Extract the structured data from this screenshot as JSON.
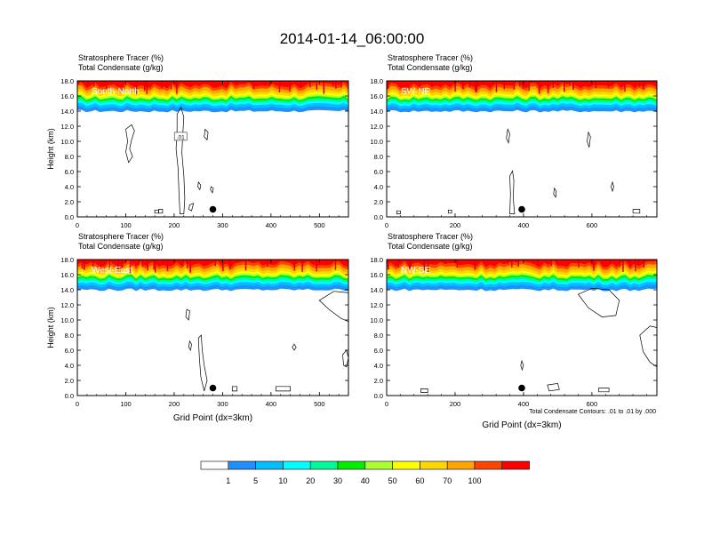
{
  "title": "2014-01-14_06:00:00",
  "colors": [
    "#ffffff",
    "#1e90ff",
    "#00bfff",
    "#00ffff",
    "#00fa9a",
    "#00ee00",
    "#adff2f",
    "#ffff00",
    "#ffd700",
    "#ffa500",
    "#ff4500",
    "#ff0000"
  ],
  "chart_data": [
    {
      "type": "heatmap",
      "cross_section": "South-North",
      "line1": "Stratosphere Tracer   (%)",
      "line2": "Total Condensate   (g/kg)",
      "ylabel": "Height (km)",
      "xlabel": "",
      "xlim": [
        0,
        560
      ],
      "ylim": [
        0,
        18
      ],
      "xticks": [
        "0",
        "100",
        "200",
        "300",
        "400",
        "500"
      ],
      "yticks": [
        "0.0",
        "2.0",
        "4.0",
        "6.0",
        "8.0",
        "10.0",
        "12.0",
        "14.0",
        "16.0",
        "18.0"
      ],
      "tracer_top_km": 18.0,
      "tracer_base_km": 14.0,
      "contour_label": ".01",
      "marker": {
        "x": 280,
        "y": 1.0
      },
      "contours": [
        [
          [
            100,
            11.6
          ],
          [
            112,
            12.2
          ],
          [
            118,
            11.4
          ],
          [
            112,
            10.2
          ],
          [
            108,
            9.0
          ],
          [
            114,
            8.0
          ],
          [
            106,
            7.2
          ],
          [
            100,
            8.6
          ],
          [
            104,
            10.0
          ],
          [
            100,
            11.6
          ]
        ],
        [
          [
            206,
            13.6
          ],
          [
            214,
            14.5
          ],
          [
            220,
            13.2
          ],
          [
            218,
            11.0
          ],
          [
            216,
            8.5
          ],
          [
            220,
            5.5
          ],
          [
            222,
            2.5
          ],
          [
            220,
            0.4
          ],
          [
            212,
            0.4
          ],
          [
            210,
            3.0
          ],
          [
            208,
            6.5
          ],
          [
            204,
            9.0
          ],
          [
            206,
            11.5
          ],
          [
            206,
            13.6
          ]
        ],
        [
          [
            264,
            11.6
          ],
          [
            270,
            11.2
          ],
          [
            268,
            10.2
          ],
          [
            262,
            10.6
          ],
          [
            264,
            11.6
          ]
        ],
        [
          [
            250,
            4.6
          ],
          [
            255,
            4.2
          ],
          [
            253,
            3.6
          ],
          [
            249,
            4.0
          ],
          [
            250,
            4.6
          ]
        ],
        [
          [
            276,
            4.0
          ],
          [
            281,
            3.8
          ],
          [
            279,
            3.2
          ],
          [
            275,
            3.6
          ],
          [
            276,
            4.0
          ]
        ],
        [
          [
            232,
            1.6
          ],
          [
            240,
            1.8
          ],
          [
            236,
            0.8
          ],
          [
            230,
            1.0
          ],
          [
            232,
            1.6
          ]
        ],
        [
          [
            160,
            0.9
          ],
          [
            168,
            0.9
          ],
          [
            168,
            0.5
          ],
          [
            160,
            0.5
          ],
          [
            160,
            0.9
          ]
        ],
        [
          [
            168,
            1.0
          ],
          [
            176,
            1.0
          ],
          [
            176,
            0.5
          ],
          [
            168,
            0.5
          ],
          [
            168,
            1.0
          ]
        ]
      ]
    },
    {
      "type": "heatmap",
      "cross_section": "SW-NE",
      "line1": "Stratosphere Tracer   (%)",
      "line2": "Total Condensate   (g/kg)",
      "ylabel": "",
      "xlabel": "",
      "xlim": [
        0,
        790
      ],
      "ylim": [
        0,
        18
      ],
      "xticks": [
        "0",
        "200",
        "400",
        "600"
      ],
      "yticks": [
        "0.0",
        "2.0",
        "4.0",
        "6.0",
        "8.0",
        "10.0",
        "12.0",
        "14.0",
        "16.0",
        "18.0"
      ],
      "tracer_top_km": 18.0,
      "tracer_base_km": 14.0,
      "contour_label": "",
      "marker": {
        "x": 395,
        "y": 1.0
      },
      "contours": [
        [
          [
            354,
            11.6
          ],
          [
            360,
            11.0
          ],
          [
            356,
            9.8
          ],
          [
            350,
            10.4
          ],
          [
            354,
            11.6
          ]
        ],
        [
          [
            590,
            11.2
          ],
          [
            596,
            10.6
          ],
          [
            592,
            9.2
          ],
          [
            586,
            10.0
          ],
          [
            590,
            11.2
          ]
        ],
        [
          [
            360,
            5.4
          ],
          [
            368,
            6.1
          ],
          [
            372,
            4.8
          ],
          [
            370,
            2.5
          ],
          [
            374,
            0.4
          ],
          [
            360,
            0.4
          ],
          [
            362,
            3.0
          ],
          [
            360,
            5.4
          ]
        ],
        [
          [
            490,
            3.8
          ],
          [
            496,
            3.4
          ],
          [
            494,
            2.6
          ],
          [
            488,
            3.0
          ],
          [
            490,
            3.8
          ]
        ],
        [
          [
            660,
            4.6
          ],
          [
            664,
            4.0
          ],
          [
            660,
            3.4
          ],
          [
            656,
            4.0
          ],
          [
            660,
            4.6
          ]
        ],
        [
          [
            180,
            0.9
          ],
          [
            190,
            0.9
          ],
          [
            190,
            0.5
          ],
          [
            180,
            0.5
          ],
          [
            180,
            0.9
          ]
        ],
        [
          [
            720,
            1.0
          ],
          [
            740,
            1.0
          ],
          [
            740,
            0.5
          ],
          [
            720,
            0.5
          ],
          [
            720,
            1.0
          ]
        ],
        [
          [
            30,
            0.8
          ],
          [
            40,
            0.8
          ],
          [
            40,
            0.4
          ],
          [
            30,
            0.4
          ],
          [
            30,
            0.8
          ]
        ]
      ]
    },
    {
      "type": "heatmap",
      "cross_section": "West-East",
      "line1": "Stratosphere Tracer   (%)",
      "line2": "Total Condensate   (g/kg)",
      "ylabel": "Height (km)",
      "xlabel": "Grid Point (dx=3km)",
      "xlim": [
        0,
        560
      ],
      "ylim": [
        0,
        18
      ],
      "xticks": [
        "0",
        "100",
        "200",
        "300",
        "400",
        "500"
      ],
      "yticks": [
        "0.0",
        "2.0",
        "4.0",
        "6.0",
        "8.0",
        "10.0",
        "12.0",
        "14.0",
        "16.0",
        "18.0"
      ],
      "tracer_top_km": 18.0,
      "tracer_base_km": 14.0,
      "contour_label": "",
      "marker": {
        "x": 280,
        "y": 1.0
      },
      "contours": [
        [
          [
            500,
            12.6
          ],
          [
            530,
            13.8
          ],
          [
            560,
            13.6
          ],
          [
            560,
            9.8
          ],
          [
            545,
            10.2
          ],
          [
            520,
            11.4
          ],
          [
            500,
            12.6
          ]
        ],
        [
          [
            250,
            7.6
          ],
          [
            256,
            8.0
          ],
          [
            258,
            6.0
          ],
          [
            262,
            4.0
          ],
          [
            268,
            2.0
          ],
          [
            262,
            0.6
          ],
          [
            255,
            2.5
          ],
          [
            252,
            5.0
          ],
          [
            250,
            7.6
          ]
        ],
        [
          [
            232,
            7.2
          ],
          [
            236,
            6.8
          ],
          [
            234,
            6.0
          ],
          [
            230,
            6.4
          ],
          [
            232,
            7.2
          ]
        ],
        [
          [
            226,
            11.4
          ],
          [
            232,
            11.2
          ],
          [
            230,
            10.0
          ],
          [
            224,
            10.4
          ],
          [
            226,
            11.4
          ]
        ],
        [
          [
            448,
            6.8
          ],
          [
            452,
            6.4
          ],
          [
            448,
            6.0
          ],
          [
            444,
            6.4
          ],
          [
            448,
            6.8
          ]
        ],
        [
          [
            548,
            5.4
          ],
          [
            556,
            6.0
          ],
          [
            560,
            5.0
          ],
          [
            556,
            3.8
          ],
          [
            550,
            4.0
          ],
          [
            548,
            5.4
          ]
        ],
        [
          [
            410,
            1.2
          ],
          [
            440,
            1.2
          ],
          [
            440,
            0.6
          ],
          [
            410,
            0.6
          ],
          [
            410,
            1.2
          ]
        ],
        [
          [
            320,
            1.2
          ],
          [
            330,
            1.2
          ],
          [
            330,
            0.6
          ],
          [
            320,
            0.6
          ],
          [
            320,
            1.2
          ]
        ]
      ]
    },
    {
      "type": "heatmap",
      "cross_section": "NW-SE",
      "line1": "Stratosphere Tracer   (%)",
      "line2": "Total Condensate   (g/kg)",
      "ylabel": "",
      "xlabel": "Grid Point (dx=3km)",
      "xlim": [
        0,
        790
      ],
      "ylim": [
        0,
        18
      ],
      "xticks": [
        "0",
        "200",
        "400",
        "600"
      ],
      "yticks": [
        "0.0",
        "2.0",
        "4.0",
        "6.0",
        "8.0",
        "10.0",
        "12.0",
        "14.0",
        "16.0",
        "18.0"
      ],
      "tracer_top_km": 18.0,
      "tracer_base_km": 14.0,
      "contour_label": "",
      "marker": {
        "x": 395,
        "y": 1.0
      },
      "contours": [
        [
          [
            560,
            13.4
          ],
          [
            600,
            14.2
          ],
          [
            650,
            14.0
          ],
          [
            680,
            12.6
          ],
          [
            670,
            10.6
          ],
          [
            630,
            10.4
          ],
          [
            590,
            11.6
          ],
          [
            560,
            13.4
          ]
        ],
        [
          [
            740,
            8.0
          ],
          [
            770,
            9.2
          ],
          [
            790,
            9.0
          ],
          [
            790,
            3.8
          ],
          [
            770,
            4.4
          ],
          [
            750,
            5.8
          ],
          [
            740,
            8.0
          ]
        ],
        [
          [
            395,
            4.6
          ],
          [
            400,
            4.0
          ],
          [
            396,
            3.4
          ],
          [
            392,
            4.0
          ],
          [
            395,
            4.6
          ]
        ],
        [
          [
            470,
            1.4
          ],
          [
            500,
            1.6
          ],
          [
            505,
            0.8
          ],
          [
            475,
            0.6
          ],
          [
            470,
            1.4
          ]
        ],
        [
          [
            620,
            1.0
          ],
          [
            650,
            1.0
          ],
          [
            650,
            0.5
          ],
          [
            620,
            0.5
          ],
          [
            620,
            1.0
          ]
        ],
        [
          [
            100,
            0.9
          ],
          [
            120,
            0.9
          ],
          [
            120,
            0.4
          ],
          [
            100,
            0.4
          ],
          [
            100,
            0.9
          ]
        ]
      ]
    }
  ],
  "colorbar": {
    "labels": [
      "1",
      "5",
      "10",
      "20",
      "30",
      "40",
      "50",
      "60",
      "70",
      "100"
    ]
  },
  "footnote": "Total Condensate Contours: .01 to .01 by .000"
}
